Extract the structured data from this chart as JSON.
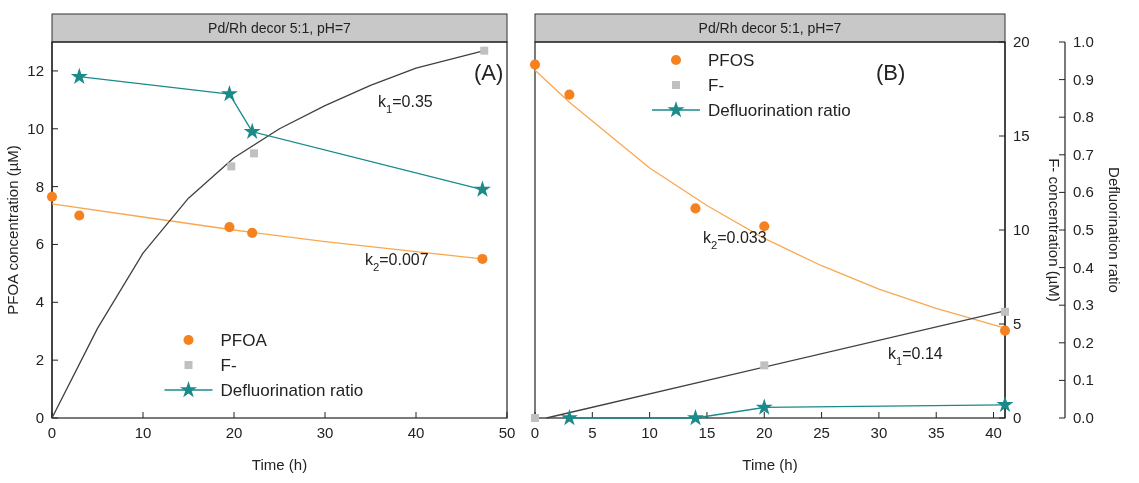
{
  "chart_data": [
    {
      "type": "scatter",
      "title": "Pd/Rh decor 5:1, pH=7",
      "xlabel": "Time (h)",
      "ylabel": "PFOA concentration (µM)",
      "xlim": [
        0,
        50
      ],
      "xticks": [
        0,
        10,
        20,
        30,
        40,
        50
      ],
      "ylim": [
        0,
        13
      ],
      "yticks": [
        0,
        2,
        4,
        6,
        8,
        10,
        12
      ],
      "legend": "bottom",
      "series": [
        {
          "type": "line",
          "marker": "none",
          "color": "#f8a850",
          "x": [
            0,
            10,
            20,
            30,
            40,
            47.3
          ],
          "values": [
            7.4,
            6.95,
            6.5,
            6.1,
            5.75,
            5.5
          ]
        },
        {
          "type": "line",
          "marker": "none",
          "color": "#404040",
          "x": [
            0,
            5,
            10,
            15,
            20,
            25,
            30,
            35,
            40,
            47.5
          ],
          "values": [
            0,
            3.1,
            5.7,
            7.6,
            9.0,
            10.0,
            10.8,
            11.5,
            12.1,
            12.7
          ]
        },
        {
          "name": "PFOA",
          "marker": "circle",
          "color": "#f5821f",
          "x": [
            0,
            3,
            19.5,
            22,
            47.3
          ],
          "values": [
            7.65,
            7.0,
            6.6,
            6.4,
            5.5
          ]
        },
        {
          "name": "F-",
          "marker": "square",
          "color": "#c0c0c0",
          "x": [
            19.7,
            22.2,
            47.5
          ],
          "values": [
            8.7,
            9.15,
            12.7
          ]
        },
        {
          "name": "Defluorination ratio",
          "type": "line",
          "marker": "star",
          "color": "#1a8a8a",
          "x": [
            3,
            19.5,
            22,
            47.3
          ],
          "values": [
            11.8,
            11.2,
            9.9,
            7.9
          ]
        }
      ],
      "annotations": [
        "(A)",
        "k$_{1}$=0.35",
        "k$_{2}$=0.007"
      ]
    },
    {
      "type": "scatter",
      "title": "Pd/Rh decor 5:1,  pH=7",
      "xlabel": "Time (h)",
      "y2label": "F- concentration (µM)",
      "y3label": "Defluorination ratio",
      "xlim": [
        0,
        41
      ],
      "xticks": [
        0,
        5,
        10,
        15,
        20,
        25,
        30,
        35,
        40
      ],
      "y2lim": [
        0,
        20
      ],
      "y2ticks": [
        0,
        5,
        10,
        15,
        20
      ],
      "y3lim": [
        0,
        1
      ],
      "y3ticks": [
        {
          "value": 0,
          "label": "0.0"
        },
        0.1,
        0.2,
        0.3,
        0.4,
        0.5,
        0.6,
        0.7,
        0.8,
        0.9,
        {
          "value": 1,
          "label": "1.0"
        }
      ],
      "legend": "top left",
      "series": [
        {
          "type": "line",
          "marker": "none",
          "axis": "y2",
          "color": "#f8a850",
          "x": [
            0,
            3,
            10,
            15,
            20,
            25,
            30,
            35,
            41
          ],
          "values": [
            18.5,
            16.8,
            13.3,
            11.3,
            9.55,
            8.1,
            6.85,
            5.83,
            4.78
          ]
        },
        {
          "type": "line",
          "marker": "none",
          "axis": "y2",
          "color": "#404040",
          "x": [
            1,
            41
          ],
          "values": [
            0,
            5.7
          ]
        },
        {
          "name": "PFOS",
          "marker": "circle",
          "axis": "y2",
          "color": "#f5821f",
          "x": [
            0,
            3,
            14,
            20,
            41
          ],
          "values": [
            18.8,
            17.2,
            11.15,
            10.2,
            4.65
          ]
        },
        {
          "name": "F-",
          "marker": "square",
          "axis": "y2",
          "color": "#c0c0c0",
          "x": [
            0,
            20,
            41
          ],
          "values": [
            0,
            2.8,
            5.65
          ]
        },
        {
          "name": "Defluorination ratio",
          "type": "line",
          "marker": "star",
          "axis": "y3",
          "color": "#1a8a8a",
          "x": [
            3,
            14,
            20,
            41
          ],
          "values": [
            0,
            0,
            0.028,
            0.035
          ]
        }
      ],
      "annotations": [
        "(B)",
        "k$_{2}$=0.033",
        "k$_{1}$=0.14"
      ]
    }
  ]
}
